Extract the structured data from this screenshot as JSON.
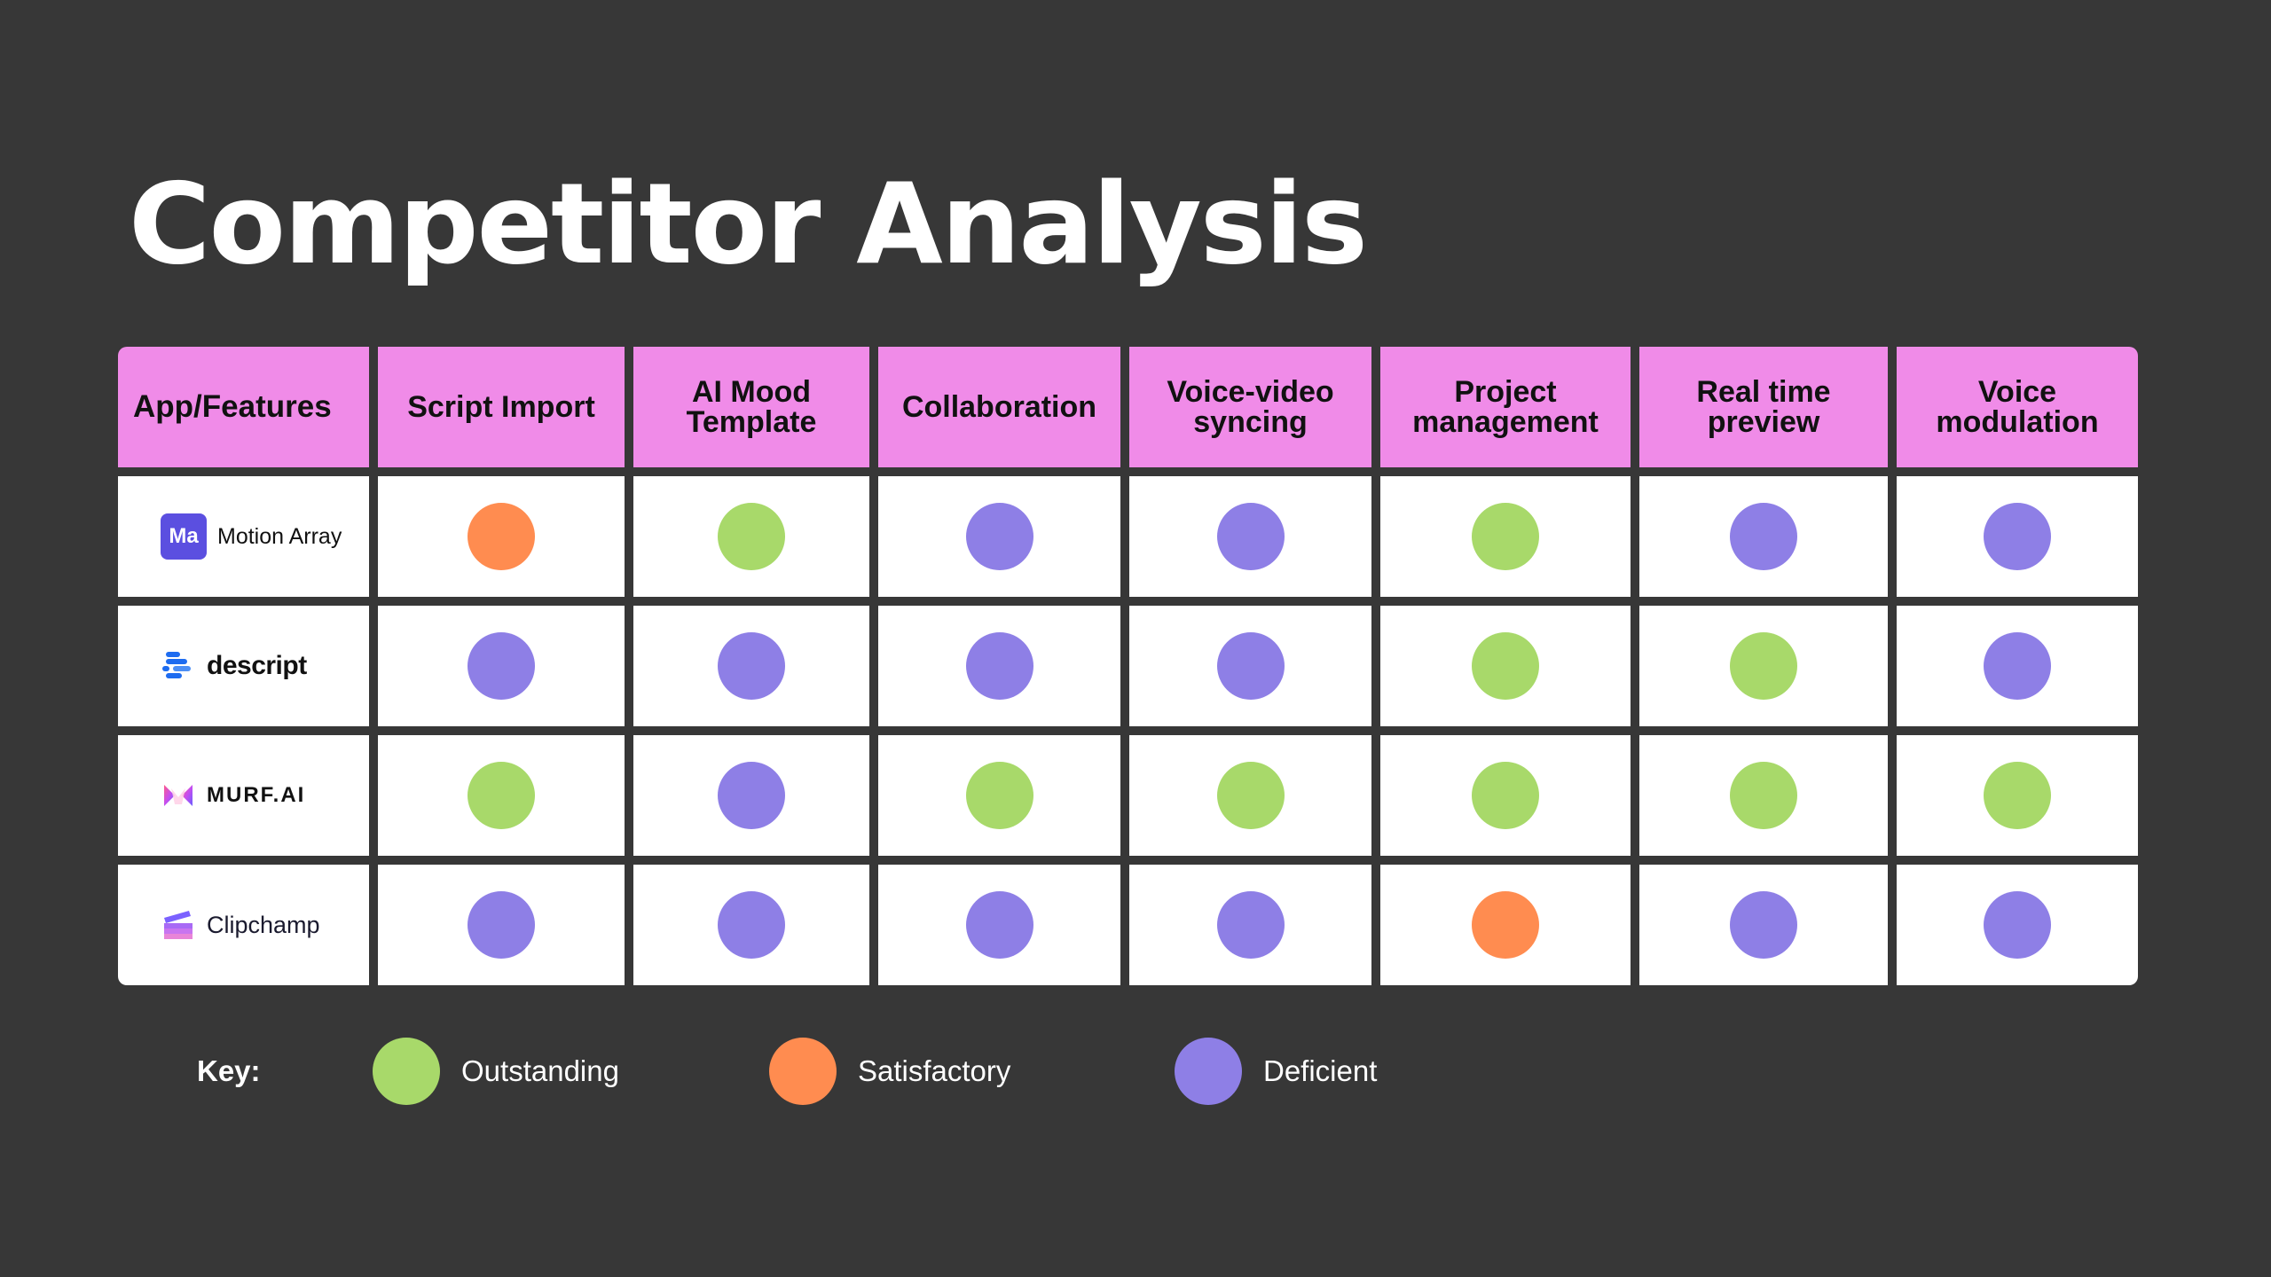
{
  "title": "Competitor Analysis",
  "colors": {
    "background": "#373737",
    "header": "#f08be8",
    "cell": "#ffffff",
    "Outstanding": "#a8d96a",
    "Satisfactory": "#ff8c50",
    "Deficient": "#8e7fe6"
  },
  "table": {
    "corner_label": "App/Features",
    "features": [
      "Script Import",
      "AI Mood Template",
      "Collaboration",
      "Voice-video syncing",
      "Project management",
      "Real time preview",
      "Voice modulation"
    ],
    "rows": [
      {
        "app": "Motion Array",
        "logo": "motion-array-logo",
        "logo_text": "Ma",
        "ratings": [
          "Satisfactory",
          "Outstanding",
          "Deficient",
          "Deficient",
          "Outstanding",
          "Deficient",
          "Deficient"
        ]
      },
      {
        "app": "descript",
        "logo": "descript-logo",
        "ratings": [
          "Deficient",
          "Deficient",
          "Deficient",
          "Deficient",
          "Outstanding",
          "Outstanding",
          "Deficient"
        ]
      },
      {
        "app": "MURF.AI",
        "logo": "murf-ai-logo",
        "ratings": [
          "Outstanding",
          "Deficient",
          "Outstanding",
          "Outstanding",
          "Outstanding",
          "Outstanding",
          "Outstanding"
        ]
      },
      {
        "app": "Clipchamp",
        "logo": "clipchamp-logo",
        "ratings": [
          "Deficient",
          "Deficient",
          "Deficient",
          "Deficient",
          "Satisfactory",
          "Deficient",
          "Deficient"
        ]
      }
    ]
  },
  "key": {
    "label": "Key:",
    "items": [
      "Outstanding",
      "Satisfactory",
      "Deficient"
    ]
  }
}
